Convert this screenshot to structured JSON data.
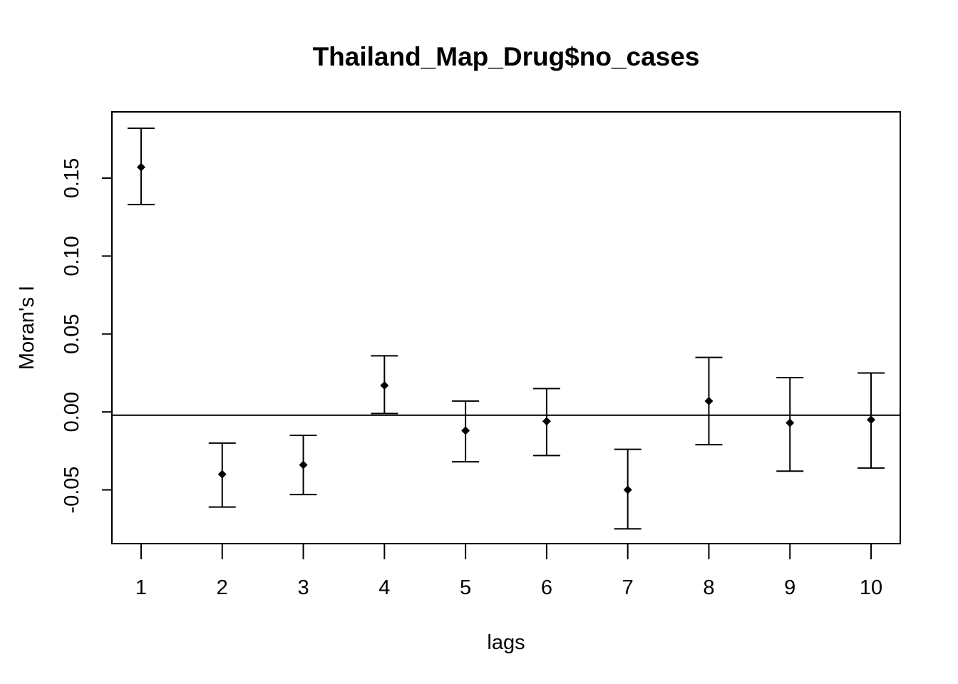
{
  "chart_data": {
    "type": "scatter",
    "title": "Thailand_Map_Drug$no_cases",
    "xlabel": "lags",
    "ylabel": "Moran's  I",
    "x": [
      1,
      2,
      3,
      4,
      5,
      6,
      7,
      8,
      9,
      10
    ],
    "x_tick_labels": [
      "1",
      "2",
      "3",
      "4",
      "5",
      "6",
      "7",
      "8",
      "9",
      "10"
    ],
    "y": [
      0.157,
      -0.04,
      -0.034,
      0.017,
      -0.012,
      -0.006,
      -0.05,
      0.007,
      -0.007,
      -0.005
    ],
    "y_lower": [
      0.133,
      -0.061,
      -0.053,
      -0.001,
      -0.032,
      -0.028,
      -0.075,
      -0.021,
      -0.038,
      -0.036
    ],
    "y_upper": [
      0.182,
      -0.02,
      -0.015,
      0.036,
      0.007,
      0.015,
      -0.024,
      0.035,
      0.022,
      0.025
    ],
    "y_ticks": [
      -0.05,
      0.0,
      0.05,
      0.1,
      0.15
    ],
    "y_tick_labels": [
      "-0.05",
      "0.00",
      "0.05",
      "0.10",
      "0.15"
    ],
    "reference_line_y": -0.0021,
    "xlim": [
      0.64,
      10.36
    ],
    "ylim": [
      -0.0845,
      0.1925
    ],
    "grid": false,
    "legend": "none",
    "point_shape": "diamond",
    "color": "#000000"
  }
}
